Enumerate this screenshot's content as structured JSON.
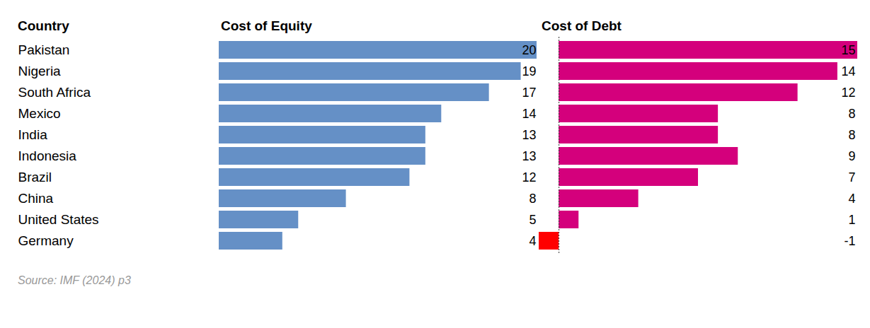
{
  "chart_data": [
    {
      "type": "bar",
      "orientation": "horizontal",
      "title": "Cost of Equity",
      "ylabel": "Country",
      "categories": [
        "Pakistan",
        "Nigeria",
        "South Africa",
        "Mexico",
        "India",
        "Indonesia",
        "Brazil",
        "China",
        "United States",
        "Germany"
      ],
      "values": [
        20,
        19,
        17,
        14,
        13,
        13,
        12,
        8,
        5,
        4
      ],
      "color": "#6590c6",
      "xlim": [
        0,
        20
      ],
      "xticks": [],
      "data_labels": true,
      "tick_labels": "y"
    },
    {
      "type": "bar",
      "orientation": "horizontal",
      "title": "Cost of Debt",
      "categories": [
        "Pakistan",
        "Nigeria",
        "South Africa",
        "Mexico",
        "India",
        "Indonesia",
        "Brazil",
        "China",
        "United States",
        "Germany"
      ],
      "values": [
        15,
        14,
        12,
        8,
        8,
        9,
        7,
        4,
        1,
        -1
      ],
      "colors": [
        "#d4007c",
        "#d4007c",
        "#d4007c",
        "#d4007c",
        "#d4007c",
        "#d4007c",
        "#d4007c",
        "#d4007c",
        "#d4007c",
        "#ff0000"
      ],
      "xlim": [
        -1,
        15
      ],
      "xticks": [],
      "data_labels": true,
      "tick_labels": false
    }
  ],
  "source": "Source: IMF (2024) p3"
}
